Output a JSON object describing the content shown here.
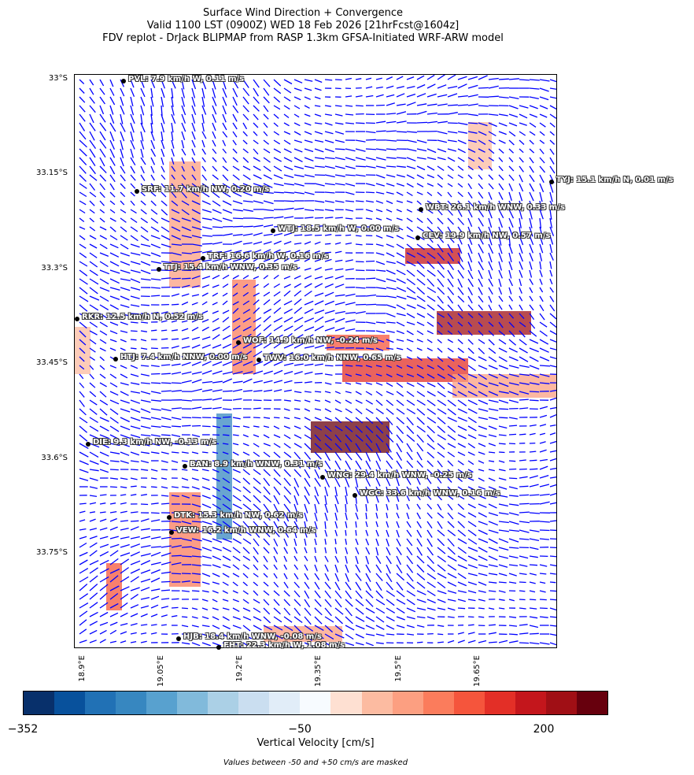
{
  "title": {
    "line1": "Surface Wind Direction + Convergence",
    "line2": "Valid 1100 LST (0900Z) WED 18 Feb 2026 [21hrFcst@1604z]",
    "line3": "FDV replot - DrJack BLIPMAP from RASP 1.3km GFSA-Initiated WRF-ARW model"
  },
  "map": {
    "lat_labels": [
      "33°S",
      "33.15°S",
      "33.3°S",
      "33.45°S",
      "33.6°S",
      "33.75°S"
    ],
    "lon_labels": [
      "18.9°E",
      "19.05°E",
      "19.2°E",
      "19.35°E",
      "19.5°E",
      "19.65°E"
    ],
    "vector_color": "#0000ff",
    "stations": [
      {
        "label": "PVL: 7.9 km/h W, 0.11 m/s"
      },
      {
        "label": "SRF: 11.7 km/h NW, 0.20 m/s"
      },
      {
        "label": "WTJ: 18.5 km/h W, 0.00 m/s"
      },
      {
        "label": "TRF: 16.6 km/h W, 0.16 m/s"
      },
      {
        "label": "TTJ: 15.4 km/h WNW, 0.35 m/s"
      },
      {
        "label": "TYJ: 15.1 km/h N, 0.01 m/s"
      },
      {
        "label": "WBT: 26.1 km/h WNW, 0.33 m/s"
      },
      {
        "label": "CEV: 19.9 km/h NW, 0.57 m/s"
      },
      {
        "label": "RKR: 12.5 km/h N, 0.52 m/s"
      },
      {
        "label": "WOF: 14.9 km/h NW, -0.24 m/s"
      },
      {
        "label": "HTJ: 7.4 km/h NNW, 0.00 m/s"
      },
      {
        "label": "TWV: 16.0 km/h NNW, 0.65 m/s"
      },
      {
        "label": "DIE: 9.3 km/h NW, -0.13 m/s"
      },
      {
        "label": "BAN: 8.9 km/h WNW, 0.31 m/s"
      },
      {
        "label": "WNG: 29.4 km/h WNW, -0.25 m/s"
      },
      {
        "label": "WGC: 33.6 km/h WNW, 0.16 m/s"
      },
      {
        "label": "DTK: 15.3 km/h NW, 0.62 m/s"
      },
      {
        "label": "VEW: 16.2 km/h WNW, 0.64 m/s"
      },
      {
        "label": "HJB: 18.4 km/h WNW, -0.08 m/s"
      },
      {
        "label": "FHT: 22.3 km/h W, 1.08 m/s"
      }
    ]
  },
  "colorbar": {
    "ticks": [
      "−352",
      "−50",
      "200"
    ],
    "label": "Vertical Velocity [cm/s]",
    "note": "Values between -50 and +50 cm/s are masked",
    "colors": [
      "#08306b",
      "#08519c",
      "#2171b5",
      "#3787c0",
      "#58a1cf",
      "#81badb",
      "#abd0e6",
      "#cadef0",
      "#e1edf8",
      "#f7fbff",
      "#fee0d2",
      "#fcbba1",
      "#fc9f81",
      "#fb7c5c",
      "#f5553c",
      "#e32f27",
      "#c4161c",
      "#a00f15",
      "#67000d"
    ]
  }
}
